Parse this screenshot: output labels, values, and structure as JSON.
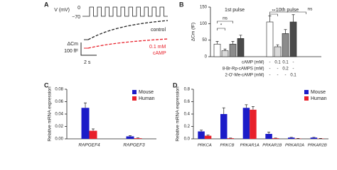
{
  "panel_a": {
    "panel_label": "A",
    "voltage_label": "V (mV)",
    "v_top": "0",
    "v_bottom": "−70",
    "scale_label": "ΔCm",
    "scale_value": "100 fF",
    "time_scale": "2 s",
    "control_label": "control",
    "camp_label_1": "0.1 mM",
    "camp_label_2": "cAMP"
  },
  "chart_data": [
    {
      "type": "bar",
      "panel_label": "B",
      "ylabel": "ΔCm (fF)",
      "categories": [
        "1st pulse",
        "10th pulse"
      ],
      "ylim": [
        0,
        150
      ],
      "yticks": [
        0,
        50,
        100,
        150
      ],
      "series": [
        {
          "color": "#ffffff",
          "values": [
            38,
            105
          ],
          "errors": [
            8,
            18
          ]
        },
        {
          "color": "#d9d9d9",
          "values": [
            18,
            30
          ],
          "errors": [
            5,
            6
          ]
        },
        {
          "color": "#8c8c8c",
          "values": [
            38,
            70
          ],
          "errors": [
            8,
            12
          ]
        },
        {
          "color": "#4a4a4a",
          "values": [
            55,
            105
          ],
          "errors": [
            10,
            22
          ]
        }
      ],
      "annotations": [
        "ns",
        "*",
        "**",
        "ns"
      ],
      "conditions": [
        {
          "label": "cAMP (mM)",
          "values": [
            "-",
            "0.1",
            "0.1",
            "-"
          ]
        },
        {
          "label": "8-Br-Rp-cAMPS (mM)",
          "values": [
            "-",
            "-",
            "0.2",
            "-"
          ]
        },
        {
          "label": "2-O′-Me-cAMP (mM)",
          "values": [
            "-",
            "-",
            "-",
            "0.1"
          ]
        }
      ]
    },
    {
      "type": "bar",
      "panel_label": "C",
      "ylabel": "Relative mRNA expression",
      "categories": [
        "RAPGEF4",
        "RAPGEF3"
      ],
      "ylim": [
        0,
        0.08
      ],
      "yticks": [
        {
          "value": 0,
          "label": "0.00"
        },
        0.02,
        0.04,
        0.06,
        0.08
      ],
      "legend": "upper right",
      "series": [
        {
          "name": "Mouse",
          "color": "#1c1cc8",
          "values": [
            0.05,
            0.004
          ],
          "errors": [
            0.008,
            0.001
          ]
        },
        {
          "name": "Human",
          "color": "#e8202a",
          "values": [
            0.013,
            0.001
          ],
          "errors": [
            0.003,
            0.0005
          ]
        }
      ]
    },
    {
      "type": "bar",
      "panel_label": "D",
      "ylabel": "Relative mRNA expression",
      "categories": [
        "PRKCA",
        "PRKCB",
        "PRKAR1A",
        "PRKAR1B",
        "PRKAR2A",
        "PRKAR2B"
      ],
      "ylim": [
        0,
        0.8
      ],
      "yticks": [
        {
          "value": 0,
          "label": "0.0"
        },
        0.2,
        0.4,
        0.6,
        0.8
      ],
      "legend": "upper right",
      "series": [
        {
          "name": "Mouse",
          "color": "#1c1cc8",
          "values": [
            0.12,
            0.4,
            0.5,
            0.08,
            0.02,
            0.02
          ],
          "errors": [
            0.02,
            0.1,
            0.05,
            0.03,
            0.005,
            0.005
          ]
        },
        {
          "name": "Human",
          "color": "#e8202a",
          "values": [
            0.05,
            0.01,
            0.47,
            0.01,
            0.005,
            0.005
          ],
          "errors": [
            0.01,
            0.003,
            0.05,
            0.003,
            0.002,
            0.002
          ]
        }
      ]
    }
  ]
}
